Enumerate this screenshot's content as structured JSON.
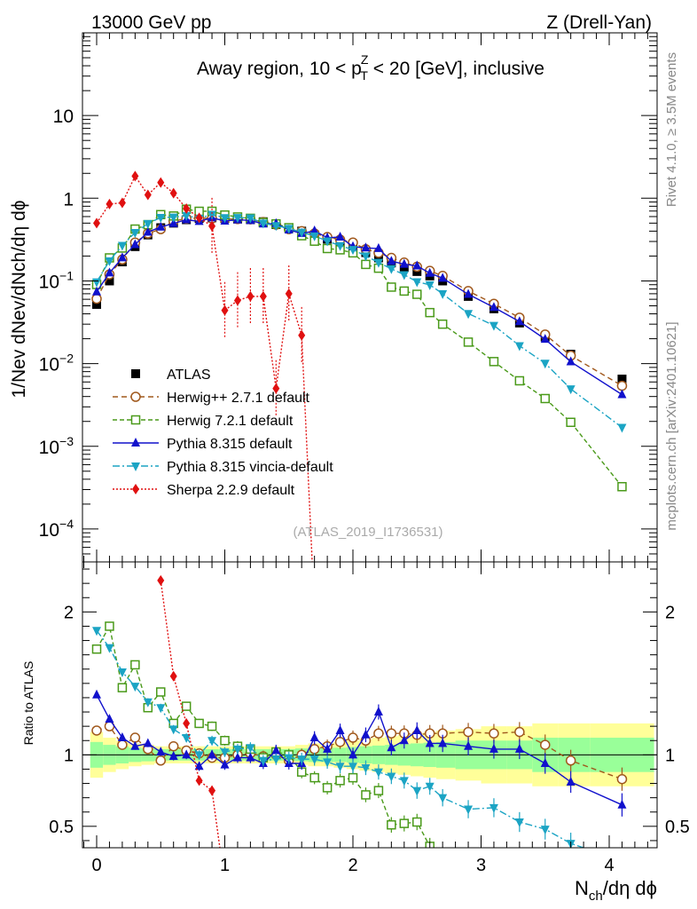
{
  "header": {
    "left": "13000 GeV pp",
    "right": "Z (Drell-Yan)"
  },
  "side_labels": {
    "rivet": "Rivet 4.1.0, ≥ 3.5M events",
    "mcplots": "mcplots.cern.ch [arXiv:2401.10621]"
  },
  "chart_data": {
    "type": "line",
    "title": "Away region, 10 < pTZ < 20 [GeV], inclusive",
    "title_parts": {
      "pre": "Away region, 10 < p",
      "sup": "Z",
      "sub": "T",
      "post": " < 20 [GeV], inclusive"
    },
    "watermark": "(ATLAS_2019_I1736531)",
    "xlabel": "Nch/dη dϕ",
    "xlabel_parts": {
      "main": "N",
      "sub": "ch",
      "rest": "/dη dϕ"
    },
    "ylabel": "1/Nev dNev/dNch/dη dϕ",
    "ylabel_ratio": "Ratio to ATLAS",
    "xlim": [
      -0.12,
      4.42
    ],
    "ylim": [
      4e-05,
      100
    ],
    "ratio_ylim": [
      0.35,
      2.35
    ],
    "x_ticks": [
      "0",
      "1",
      "2",
      "3",
      "4"
    ],
    "y_ticks": [
      "10-4",
      "10-3",
      "10-2",
      "10-1",
      "1",
      "10"
    ],
    "ratio_ticks": [
      "0.5",
      "1",
      "2"
    ],
    "x": [
      0,
      0.1,
      0.2,
      0.3,
      0.4,
      0.5,
      0.6,
      0.7,
      0.8,
      0.9,
      1.0,
      1.1,
      1.2,
      1.3,
      1.4,
      1.5,
      1.6,
      1.7,
      1.8,
      1.9,
      2.0,
      2.1,
      2.2,
      2.3,
      2.4,
      2.5,
      2.6,
      2.7,
      2.9,
      3.1,
      3.3,
      3.5,
      3.7,
      4.1
    ],
    "band_edges": [
      -0.05,
      0.05,
      0.15,
      0.25,
      0.35,
      0.45,
      0.55,
      0.65,
      0.75,
      0.85,
      0.95,
      1.05,
      1.15,
      1.25,
      1.35,
      1.45,
      1.55,
      1.65,
      1.75,
      1.85,
      1.95,
      2.05,
      2.15,
      2.25,
      2.35,
      2.45,
      2.55,
      2.65,
      2.8,
      3.0,
      3.2,
      3.4,
      3.6,
      3.85,
      4.35
    ],
    "band_inner": [
      0.09,
      0.07,
      0.06,
      0.05,
      0.045,
      0.04,
      0.04,
      0.04,
      0.04,
      0.04,
      0.04,
      0.04,
      0.04,
      0.04,
      0.04,
      0.04,
      0.045,
      0.05,
      0.05,
      0.05,
      0.055,
      0.06,
      0.065,
      0.07,
      0.075,
      0.08,
      0.085,
      0.09,
      0.1,
      0.1,
      0.1,
      0.12,
      0.12,
      0.12
    ],
    "band_outer": [
      0.16,
      0.12,
      0.1,
      0.08,
      0.07,
      0.06,
      0.06,
      0.06,
      0.06,
      0.06,
      0.06,
      0.06,
      0.06,
      0.06,
      0.06,
      0.06,
      0.07,
      0.08,
      0.08,
      0.09,
      0.1,
      0.11,
      0.12,
      0.13,
      0.14,
      0.15,
      0.16,
      0.17,
      0.18,
      0.2,
      0.2,
      0.22,
      0.22,
      0.22
    ],
    "series": [
      {
        "name": "ATLAS",
        "key": "atlas",
        "color": "#000000",
        "marker": "square-filled",
        "dash": "none",
        "values": [
          0.052,
          0.1,
          0.17,
          0.26,
          0.36,
          0.44,
          0.5,
          0.55,
          0.57,
          0.58,
          0.57,
          0.56,
          0.55,
          0.52,
          0.48,
          0.44,
          0.4,
          0.36,
          0.32,
          0.29,
          0.26,
          0.22,
          0.19,
          0.165,
          0.145,
          0.13,
          0.115,
          0.1,
          0.065,
          0.046,
          0.031,
          0.021,
          0.013,
          0.0065
        ]
      },
      {
        "name": "Herwig++ 2.7.1 default",
        "key": "herwigpp",
        "color": "#a0581c",
        "marker": "circle-open",
        "dash": "6,4",
        "ratio": [
          1.17,
          1.2,
          1.07,
          1.12,
          1.04,
          0.96,
          1.06,
          1.03,
          1.01,
          0.98,
          0.98,
          1.0,
          1.01,
          0.99,
          1.0,
          0.96,
          1.0,
          1.04,
          1.06,
          1.09,
          1.12,
          1.1,
          1.15,
          1.15,
          1.15,
          1.14,
          1.15,
          1.15,
          1.16,
          1.15,
          1.16,
          1.07,
          0.96,
          0.83
        ]
      },
      {
        "name": "Herwig 7.2.1 default",
        "key": "herwig7",
        "color": "#4a9a1a",
        "marker": "square-open",
        "dash": "5,3",
        "ratio": [
          1.74,
          1.9,
          1.47,
          1.63,
          1.33,
          1.44,
          1.22,
          1.34,
          1.22,
          1.2,
          1.1,
          1.06,
          1.04,
          0.98,
          1.02,
          1.0,
          0.88,
          0.84,
          0.77,
          0.82,
          0.84,
          0.72,
          0.75,
          0.51,
          0.52,
          0.53,
          0.36,
          0.3,
          0.28,
          0.23,
          0.2,
          0.18,
          0.15,
          0.05
        ]
      },
      {
        "name": "Pythia 8.315 default",
        "key": "pythia",
        "color": "#1111cc",
        "marker": "triangle-up",
        "dash": "none",
        "ratio": [
          1.42,
          1.25,
          1.12,
          1.06,
          1.08,
          1.02,
          0.99,
          1.0,
          0.92,
          1.0,
          0.93,
          0.98,
          0.98,
          0.94,
          1.03,
          0.94,
          0.94,
          1.12,
          1.04,
          1.17,
          1.0,
          1.14,
          1.3,
          1.05,
          1.1,
          1.17,
          1.08,
          1.08,
          1.06,
          1.04,
          1.04,
          0.94,
          0.81,
          0.65
        ]
      },
      {
        "name": "Pythia 8.315 vincia-default",
        "key": "vincia",
        "color": "#1ba4c4",
        "marker": "triangle-down",
        "dash": "8,3,2,3",
        "ratio": [
          1.87,
          1.75,
          1.58,
          1.48,
          1.37,
          1.33,
          1.18,
          1.12,
          1.0,
          1.1,
          1.02,
          1.04,
          1.05,
          0.96,
          0.97,
          0.98,
          0.97,
          0.97,
          0.95,
          0.92,
          0.92,
          0.91,
          0.88,
          0.85,
          0.82,
          0.75,
          0.78,
          0.7,
          0.62,
          0.63,
          0.53,
          0.48,
          0.38,
          0.26
        ]
      },
      {
        "name": "Sherpa 2.2.9 default",
        "key": "sherpa",
        "color": "#e01010",
        "marker": "diamond",
        "dash": "2,2",
        "plotted_x": [
          0,
          0.1,
          0.2,
          0.3,
          0.4,
          0.5,
          0.6,
          0.7,
          0.8,
          0.9,
          1.0,
          1.1,
          1.2,
          1.3,
          1.4,
          1.5,
          1.6,
          1.7
        ],
        "plotted_values": [
          0.5,
          0.85,
          0.88,
          1.85,
          1.1,
          1.55,
          1.15,
          0.75,
          0.58,
          0.46,
          0.044,
          0.058,
          0.065,
          0.065,
          0.005,
          0.07,
          0.022,
          1e-05
        ],
        "plotted_ratio": [
          null,
          null,
          null,
          null,
          null,
          2.22,
          1.55,
          1.22,
          0.82,
          0.75,
          0.1,
          0.1,
          null,
          null,
          null,
          null,
          null,
          null
        ]
      }
    ]
  }
}
